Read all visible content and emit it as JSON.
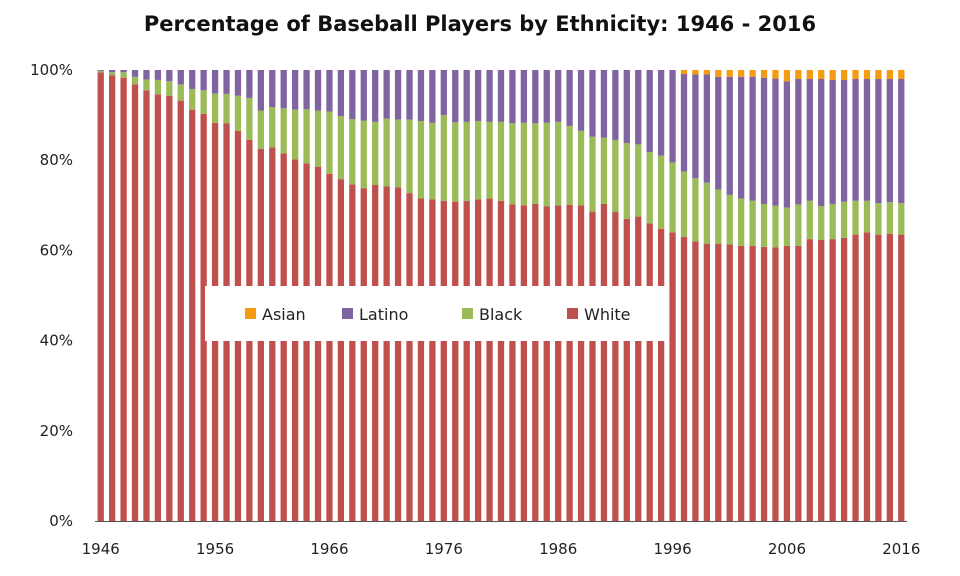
{
  "chart_data": {
    "type": "bar",
    "stacked": true,
    "title": "Percentage of Baseball Players by Ethnicity: 1946 - 2016",
    "xlabel": "",
    "ylabel": "",
    "ylim": [
      0,
      100
    ],
    "y_ticks": [
      "0%",
      "20%",
      "40%",
      "60%",
      "80%",
      "100%"
    ],
    "x_ticks": [
      "1946",
      "1956",
      "1966",
      "1976",
      "1986",
      "1996",
      "2006",
      "2016"
    ],
    "x": [
      1946,
      1947,
      1948,
      1949,
      1950,
      1951,
      1952,
      1953,
      1954,
      1955,
      1956,
      1957,
      1958,
      1959,
      1960,
      1961,
      1962,
      1963,
      1964,
      1965,
      1966,
      1967,
      1968,
      1969,
      1970,
      1971,
      1972,
      1973,
      1974,
      1975,
      1976,
      1977,
      1978,
      1979,
      1980,
      1981,
      1982,
      1983,
      1984,
      1985,
      1986,
      1987,
      1988,
      1989,
      1990,
      1991,
      1992,
      1993,
      1994,
      1995,
      1996,
      1997,
      1998,
      1999,
      2000,
      2001,
      2002,
      2003,
      2004,
      2005,
      2006,
      2007,
      2008,
      2009,
      2010,
      2011,
      2012,
      2013,
      2014,
      2015,
      2016
    ],
    "series": [
      {
        "name": "White",
        "color": "#c0504d",
        "values": [
          99.5,
          98.8,
          98.3,
          96.8,
          95.5,
          94.6,
          94.3,
          93.2,
          91.2,
          90.3,
          88.3,
          88.2,
          86.5,
          84.5,
          82.5,
          82.8,
          81.5,
          80.2,
          79.3,
          78.5,
          77,
          75.8,
          74.6,
          73.8,
          74.5,
          74.2,
          74,
          72.7,
          71.5,
          71.3,
          71,
          70.8,
          71,
          71.3,
          71.5,
          71,
          70.2,
          70,
          70.3,
          69.8,
          70,
          70.1,
          70,
          68.6,
          70.3,
          68.5,
          67,
          67.5,
          66,
          64.8,
          64,
          63,
          62,
          61.5,
          61.5,
          61.3,
          61,
          61,
          60.8,
          60.7,
          61,
          61,
          62.5,
          62.3,
          62.5,
          62.8,
          63.5,
          64,
          63.5,
          63.7,
          63.5
        ]
      },
      {
        "name": "Black",
        "color": "#9bbb59",
        "values": [
          0.3,
          0.7,
          1.2,
          1.7,
          2.4,
          3.2,
          3.2,
          3.6,
          4.6,
          5.2,
          6.5,
          6.5,
          7.8,
          9.3,
          8.5,
          9,
          10,
          11,
          12,
          12.5,
          13.8,
          14,
          14.5,
          15,
          14,
          15,
          15,
          16.3,
          17.2,
          17,
          19,
          17.6,
          17.5,
          17.4,
          17,
          17.5,
          18,
          18.3,
          17.9,
          18.5,
          18.5,
          17.5,
          16.5,
          16.6,
          14.7,
          16,
          16.8,
          16,
          15.8,
          16.2,
          15.5,
          14.5,
          14,
          13.5,
          12,
          11,
          10.5,
          10,
          9.5,
          9.2,
          8.5,
          9.2,
          8.5,
          7.5,
          7.8,
          8,
          7.5,
          7,
          7,
          7,
          7
        ]
      },
      {
        "name": "Latino",
        "color": "#8064a2",
        "values": [
          0.2,
          0.5,
          0.5,
          1.5,
          2.1,
          2.2,
          2.5,
          3.2,
          4.2,
          4.5,
          5.2,
          5.3,
          5.7,
          6.2,
          9,
          8.2,
          8.5,
          8.8,
          8.7,
          9,
          9.2,
          10.2,
          10.9,
          11.2,
          11.5,
          10.8,
          11,
          11,
          11.3,
          11.7,
          10,
          11.6,
          11.5,
          11.3,
          11.5,
          11.5,
          11.8,
          11.7,
          11.8,
          11.7,
          11.5,
          12.4,
          13.5,
          14.8,
          15,
          15.5,
          16.2,
          16.5,
          18.2,
          19,
          20.5,
          21.6,
          23,
          24,
          25,
          26.2,
          27,
          27.5,
          28,
          28.2,
          28,
          27.8,
          27,
          28.2,
          27.5,
          27,
          27,
          27,
          27.5,
          27.3,
          27.5
        ]
      },
      {
        "name": "Asian",
        "color": "#f39c12",
        "values": [
          0,
          0,
          0,
          0,
          0,
          0,
          0,
          0,
          0,
          0,
          0,
          0,
          0,
          0,
          0,
          0,
          0,
          0,
          0,
          0,
          0,
          0,
          0,
          0,
          0,
          0,
          0,
          0,
          0,
          0,
          0,
          0,
          0,
          0,
          0,
          0,
          0,
          0,
          0,
          0,
          0,
          0,
          0,
          0,
          0,
          0,
          0,
          0,
          0,
          0,
          0,
          0.9,
          1,
          1,
          1.5,
          1.5,
          1.5,
          1.5,
          1.7,
          1.9,
          2.5,
          2,
          2,
          2,
          2.2,
          2.2,
          2,
          2,
          2,
          2,
          2
        ]
      }
    ],
    "legend": {
      "placement": "center-left",
      "order": [
        "Asian",
        "Latino",
        "Black",
        "White"
      ]
    },
    "grid": false
  }
}
